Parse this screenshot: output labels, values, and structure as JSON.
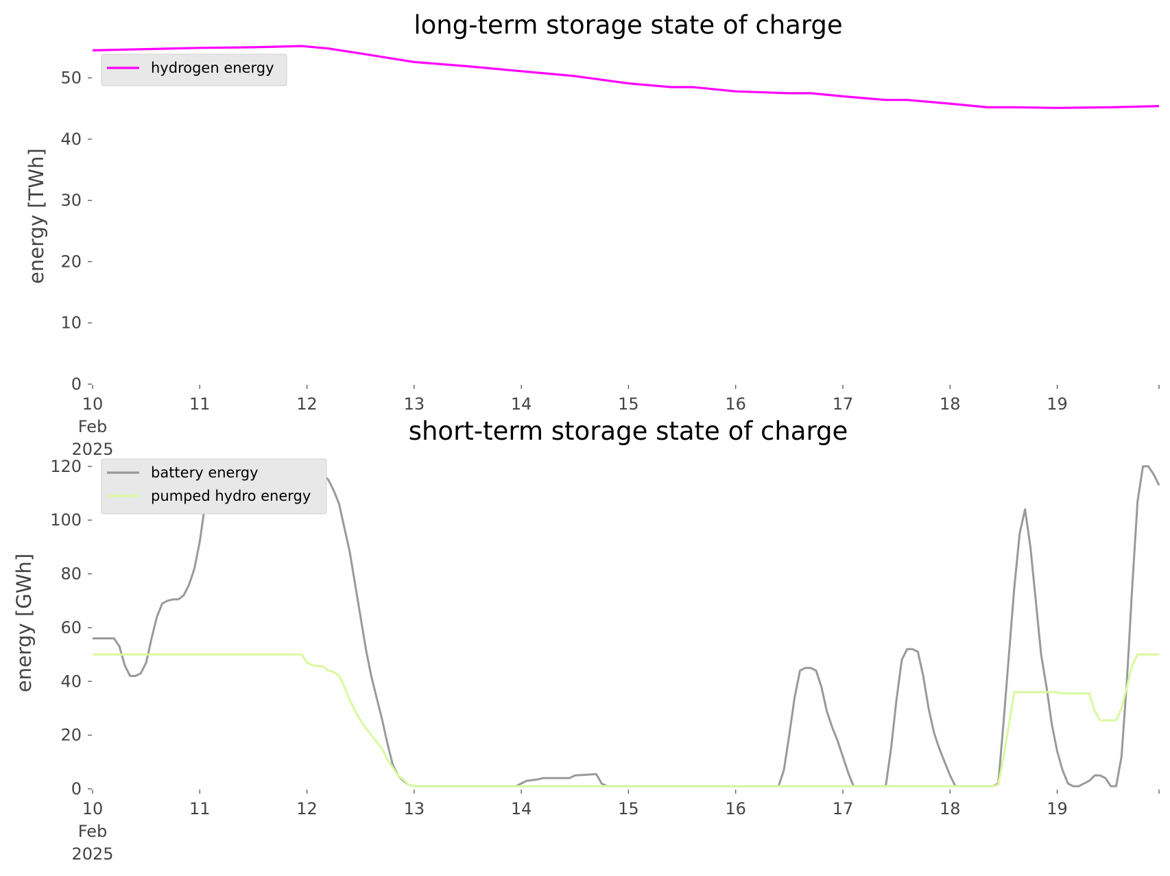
{
  "chart_data": [
    {
      "type": "line",
      "title": "long-term storage state of charge",
      "ylabel": "energy [TWh]",
      "xlabel": "",
      "unit": "TWh",
      "ylim": [
        0,
        56
      ],
      "yticks": [
        0,
        10,
        20,
        30,
        40,
        50
      ],
      "xlim": [
        0,
        9.95
      ],
      "xticks": [
        {
          "v": 0,
          "lines": [
            "10",
            "Feb",
            "2025"
          ]
        },
        {
          "v": 1,
          "lines": [
            "11"
          ]
        },
        {
          "v": 2,
          "lines": [
            "12"
          ]
        },
        {
          "v": 3,
          "lines": [
            "13"
          ]
        },
        {
          "v": 4,
          "lines": [
            "14"
          ]
        },
        {
          "v": 5,
          "lines": [
            "15"
          ]
        },
        {
          "v": 6,
          "lines": [
            "16"
          ]
        },
        {
          "v": 7,
          "lines": [
            "17"
          ]
        },
        {
          "v": 8,
          "lines": [
            "18"
          ]
        },
        {
          "v": 9,
          "lines": [
            "19"
          ]
        }
      ],
      "legend_placement": "upper-left",
      "grid": false,
      "series": [
        {
          "name": "hydrogen energy",
          "color": "#ff00ff",
          "points": [
            [
              0,
              54.5
            ],
            [
              0.5,
              54.7
            ],
            [
              1,
              54.9
            ],
            [
              1.5,
              55.0
            ],
            [
              1.95,
              55.2
            ],
            [
              2.2,
              54.8
            ],
            [
              2.5,
              54.0
            ],
            [
              3,
              52.6
            ],
            [
              3.5,
              51.9
            ],
            [
              4,
              51.1
            ],
            [
              4.5,
              50.3
            ],
            [
              5,
              49.1
            ],
            [
              5.4,
              48.5
            ],
            [
              5.6,
              48.5
            ],
            [
              6,
              47.8
            ],
            [
              6.5,
              47.5
            ],
            [
              6.7,
              47.5
            ],
            [
              7,
              47.0
            ],
            [
              7.4,
              46.4
            ],
            [
              7.6,
              46.4
            ],
            [
              8,
              45.8
            ],
            [
              8.35,
              45.2
            ],
            [
              8.6,
              45.2
            ],
            [
              9,
              45.1
            ],
            [
              9.5,
              45.2
            ],
            [
              9.95,
              45.4
            ]
          ]
        }
      ]
    },
    {
      "type": "line",
      "title": "short-term storage state of charge",
      "ylabel": "energy [GWh]",
      "xlabel": "",
      "unit": "GWh",
      "ylim": [
        0,
        122
      ],
      "yticks": [
        0,
        20,
        40,
        60,
        80,
        100,
        120
      ],
      "xlim": [
        0,
        9.95
      ],
      "xticks": [
        {
          "v": 0,
          "lines": [
            "10",
            "Feb",
            "2025"
          ]
        },
        {
          "v": 1,
          "lines": [
            "11"
          ]
        },
        {
          "v": 2,
          "lines": [
            "12"
          ]
        },
        {
          "v": 3,
          "lines": [
            "13"
          ]
        },
        {
          "v": 4,
          "lines": [
            "14"
          ]
        },
        {
          "v": 5,
          "lines": [
            "15"
          ]
        },
        {
          "v": 6,
          "lines": [
            "16"
          ]
        },
        {
          "v": 7,
          "lines": [
            "17"
          ]
        },
        {
          "v": 8,
          "lines": [
            "18"
          ]
        },
        {
          "v": 9,
          "lines": [
            "19"
          ]
        }
      ],
      "legend_placement": "upper-left",
      "grid": false,
      "series": [
        {
          "name": "battery energy",
          "color": "#999999",
          "points": [
            [
              0,
              56
            ],
            [
              0.2,
              56
            ],
            [
              0.25,
              53
            ],
            [
              0.3,
              46
            ],
            [
              0.35,
              42
            ],
            [
              0.4,
              42
            ],
            [
              0.45,
              43
            ],
            [
              0.5,
              47
            ],
            [
              0.55,
              56
            ],
            [
              0.6,
              64
            ],
            [
              0.65,
              69
            ],
            [
              0.7,
              70
            ],
            [
              0.75,
              70.5
            ],
            [
              0.8,
              70.5
            ],
            [
              0.85,
              72
            ],
            [
              0.9,
              76
            ],
            [
              0.95,
              82
            ],
            [
              1.0,
              92
            ],
            [
              1.05,
              106
            ],
            [
              1.1,
              120
            ],
            [
              1.5,
              120
            ],
            [
              1.6,
              120
            ],
            [
              1.7,
              118
            ],
            [
              1.8,
              118
            ],
            [
              1.9,
              119
            ],
            [
              1.95,
              121
            ],
            [
              2.0,
              119
            ],
            [
              2.05,
              118
            ],
            [
              2.1,
              117.5
            ],
            [
              2.15,
              117
            ],
            [
              2.2,
              115
            ],
            [
              2.25,
              111
            ],
            [
              2.3,
              106
            ],
            [
              2.35,
              97
            ],
            [
              2.4,
              88
            ],
            [
              2.45,
              76
            ],
            [
              2.5,
              64
            ],
            [
              2.55,
              52
            ],
            [
              2.6,
              42
            ],
            [
              2.65,
              34
            ],
            [
              2.7,
              26
            ],
            [
              2.75,
              17
            ],
            [
              2.8,
              9
            ],
            [
              2.85,
              5
            ],
            [
              2.9,
              3
            ],
            [
              2.95,
              1.5
            ],
            [
              3.0,
              1
            ],
            [
              3.95,
              1
            ],
            [
              4.05,
              3
            ],
            [
              4.15,
              3.5
            ],
            [
              4.2,
              4
            ],
            [
              4.45,
              4
            ],
            [
              4.5,
              5
            ],
            [
              4.7,
              5.5
            ],
            [
              4.75,
              2
            ],
            [
              4.8,
              1
            ],
            [
              6.4,
              1
            ],
            [
              6.45,
              7
            ],
            [
              6.5,
              20
            ],
            [
              6.55,
              34
            ],
            [
              6.6,
              44
            ],
            [
              6.65,
              45
            ],
            [
              6.7,
              45
            ],
            [
              6.75,
              44
            ],
            [
              6.8,
              38
            ],
            [
              6.85,
              29
            ],
            [
              6.9,
              23
            ],
            [
              6.95,
              18
            ],
            [
              7.0,
              12
            ],
            [
              7.05,
              6
            ],
            [
              7.1,
              1
            ],
            [
              7.4,
              1
            ],
            [
              7.45,
              15
            ],
            [
              7.5,
              33
            ],
            [
              7.55,
              48
            ],
            [
              7.6,
              52
            ],
            [
              7.65,
              52
            ],
            [
              7.7,
              51
            ],
            [
              7.75,
              42
            ],
            [
              7.8,
              30
            ],
            [
              7.85,
              21
            ],
            [
              7.9,
              15
            ],
            [
              7.95,
              10
            ],
            [
              8.0,
              5
            ],
            [
              8.05,
              1
            ],
            [
              8.4,
              1
            ],
            [
              8.45,
              2
            ],
            [
              8.5,
              25
            ],
            [
              8.55,
              50
            ],
            [
              8.6,
              75
            ],
            [
              8.65,
              95
            ],
            [
              8.7,
              104
            ],
            [
              8.75,
              90
            ],
            [
              8.8,
              70
            ],
            [
              8.85,
              50
            ],
            [
              8.9,
              38
            ],
            [
              8.95,
              24
            ],
            [
              9.0,
              14
            ],
            [
              9.05,
              7
            ],
            [
              9.1,
              2
            ],
            [
              9.15,
              1
            ],
            [
              9.2,
              1
            ],
            [
              9.25,
              2
            ],
            [
              9.3,
              3
            ],
            [
              9.35,
              5
            ],
            [
              9.4,
              5
            ],
            [
              9.45,
              4
            ],
            [
              9.5,
              1
            ],
            [
              9.55,
              1
            ],
            [
              9.6,
              12
            ],
            [
              9.65,
              40
            ],
            [
              9.7,
              75
            ],
            [
              9.75,
              107
            ],
            [
              9.8,
              120
            ],
            [
              9.85,
              120
            ],
            [
              9.9,
              117
            ],
            [
              9.95,
              113
            ]
          ]
        },
        {
          "name": "pumped hydro energy",
          "color": "#d9f99d",
          "points": [
            [
              0,
              50
            ],
            [
              1.95,
              50
            ],
            [
              2.0,
              47
            ],
            [
              2.05,
              46
            ],
            [
              2.15,
              45.5
            ],
            [
              2.2,
              44
            ],
            [
              2.25,
              43.5
            ],
            [
              2.3,
              42
            ],
            [
              2.35,
              38
            ],
            [
              2.4,
              33
            ],
            [
              2.45,
              29
            ],
            [
              2.5,
              25.5
            ],
            [
              2.55,
              22.5
            ],
            [
              2.6,
              20
            ],
            [
              2.65,
              17.5
            ],
            [
              2.7,
              15
            ],
            [
              2.75,
              11
            ],
            [
              2.8,
              8
            ],
            [
              2.85,
              5
            ],
            [
              2.9,
              3.5
            ],
            [
              2.95,
              1.5
            ],
            [
              3.0,
              1
            ],
            [
              8.4,
              1
            ],
            [
              8.45,
              1.5
            ],
            [
              8.5,
              12
            ],
            [
              8.55,
              24
            ],
            [
              8.6,
              36
            ],
            [
              9.0,
              36
            ],
            [
              9.05,
              35.5
            ],
            [
              9.3,
              35.5
            ],
            [
              9.35,
              29
            ],
            [
              9.4,
              25.5
            ],
            [
              9.55,
              25.5
            ],
            [
              9.6,
              30
            ],
            [
              9.65,
              38
            ],
            [
              9.7,
              46
            ],
            [
              9.75,
              50
            ],
            [
              9.95,
              50
            ]
          ]
        }
      ]
    }
  ]
}
